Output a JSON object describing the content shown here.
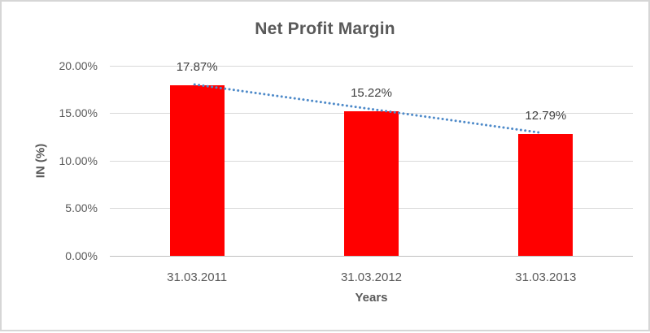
{
  "chart_data": {
    "type": "bar",
    "title": "Net Profit Margin",
    "xlabel": "Years",
    "ylabel": "IN (%)",
    "categories": [
      "31.03.2011",
      "31.03.2012",
      "31.03.2013"
    ],
    "values": [
      17.87,
      15.22,
      12.79
    ],
    "value_labels": [
      "17.87%",
      "15.22%",
      "12.79%"
    ],
    "y_ticks": [
      0,
      5,
      10,
      15,
      20
    ],
    "y_tick_labels": [
      "0.00%",
      "5.00%",
      "10.00%",
      "15.00%",
      "20.00%"
    ],
    "ylim": [
      0,
      20
    ],
    "grid": true,
    "legend_position": "none",
    "bar_color": "#ff0000",
    "grid_color": "#d9d9d9",
    "axis_line_color": "#bfbfbf",
    "text_color": "#595959",
    "data_label_color": "#404040",
    "trendline": {
      "type": "linear",
      "style": "dotted",
      "color": "#4e8ac9"
    }
  }
}
